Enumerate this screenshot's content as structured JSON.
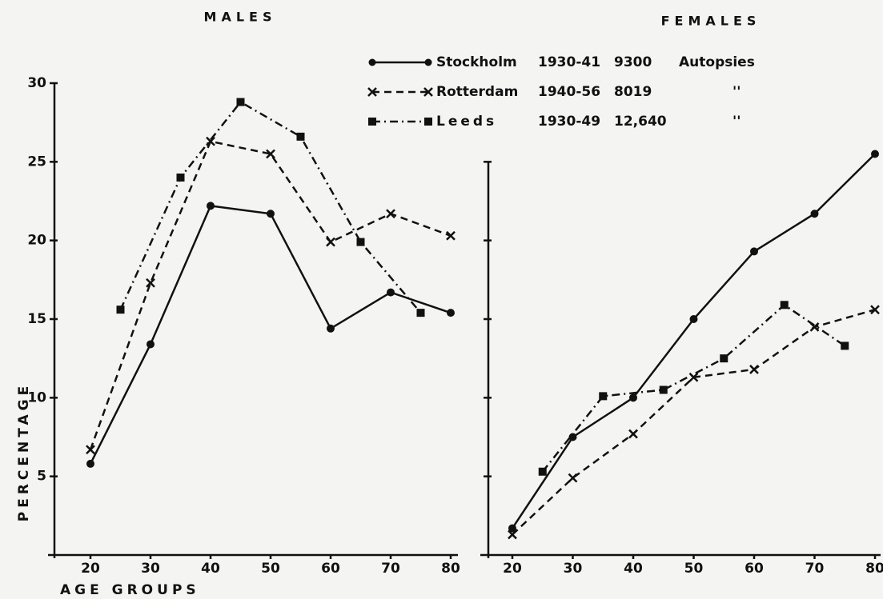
{
  "chart_data": [
    {
      "type": "line",
      "title": "MALES",
      "ylabel": "PERCENTAGE",
      "xlabel": "AGE GROUPS",
      "xlim": [
        20,
        80
      ],
      "ylim": [
        0,
        30
      ],
      "xticks": [
        20,
        30,
        40,
        50,
        60,
        70,
        80
      ],
      "yticks": [
        5,
        10,
        15,
        20,
        25,
        30
      ],
      "color": "#111111",
      "series": [
        {
          "name": "Stockholm",
          "period": "1930-41",
          "count": "9300",
          "note": "Autopsies",
          "style": "solid",
          "marker": "circle",
          "x": [
            20,
            30,
            40,
            50,
            60,
            70,
            80
          ],
          "values": [
            5.8,
            13.4,
            22.2,
            21.7,
            14.4,
            16.7,
            15.4
          ]
        },
        {
          "name": "Rotterdam",
          "period": "1940-56",
          "count": "8019",
          "note": "''",
          "style": "dashed",
          "marker": "cross",
          "x": [
            20,
            30,
            40,
            50,
            60,
            70,
            80
          ],
          "values": [
            6.7,
            17.3,
            26.3,
            25.5,
            19.9,
            21.7,
            20.3
          ]
        },
        {
          "name": "Leeds",
          "period": "1930-49",
          "count": "12,640",
          "note": "''",
          "style": "dashdot",
          "marker": "square",
          "x": [
            25,
            35,
            45,
            55,
            65,
            75
          ],
          "values": [
            15.6,
            24.0,
            28.8,
            26.6,
            19.9,
            15.4
          ]
        }
      ]
    },
    {
      "type": "line",
      "title": "FEMALES",
      "xlim": [
        20,
        80
      ],
      "ylim": [
        0,
        30
      ],
      "xticks": [
        20,
        30,
        40,
        50,
        60,
        70,
        80
      ],
      "yticks": [
        5,
        10,
        15,
        20,
        25
      ],
      "ytick_labels": false,
      "color": "#111111",
      "series": [
        {
          "style": "solid",
          "marker": "circle",
          "x": [
            20,
            30,
            40,
            50,
            60,
            70,
            80
          ],
          "values": [
            1.7,
            7.5,
            10.0,
            15.0,
            19.3,
            21.7,
            25.5
          ]
        },
        {
          "style": "dashed",
          "marker": "cross",
          "x": [
            20,
            30,
            40,
            50,
            60,
            70,
            80
          ],
          "values": [
            1.3,
            4.9,
            7.7,
            11.3,
            11.8,
            14.5,
            15.6
          ]
        },
        {
          "style": "dashdot",
          "marker": "square",
          "x": [
            25,
            35,
            45,
            55,
            65,
            75
          ],
          "values": [
            5.3,
            10.1,
            10.5,
            12.5,
            15.9,
            13.3
          ]
        }
      ]
    }
  ]
}
